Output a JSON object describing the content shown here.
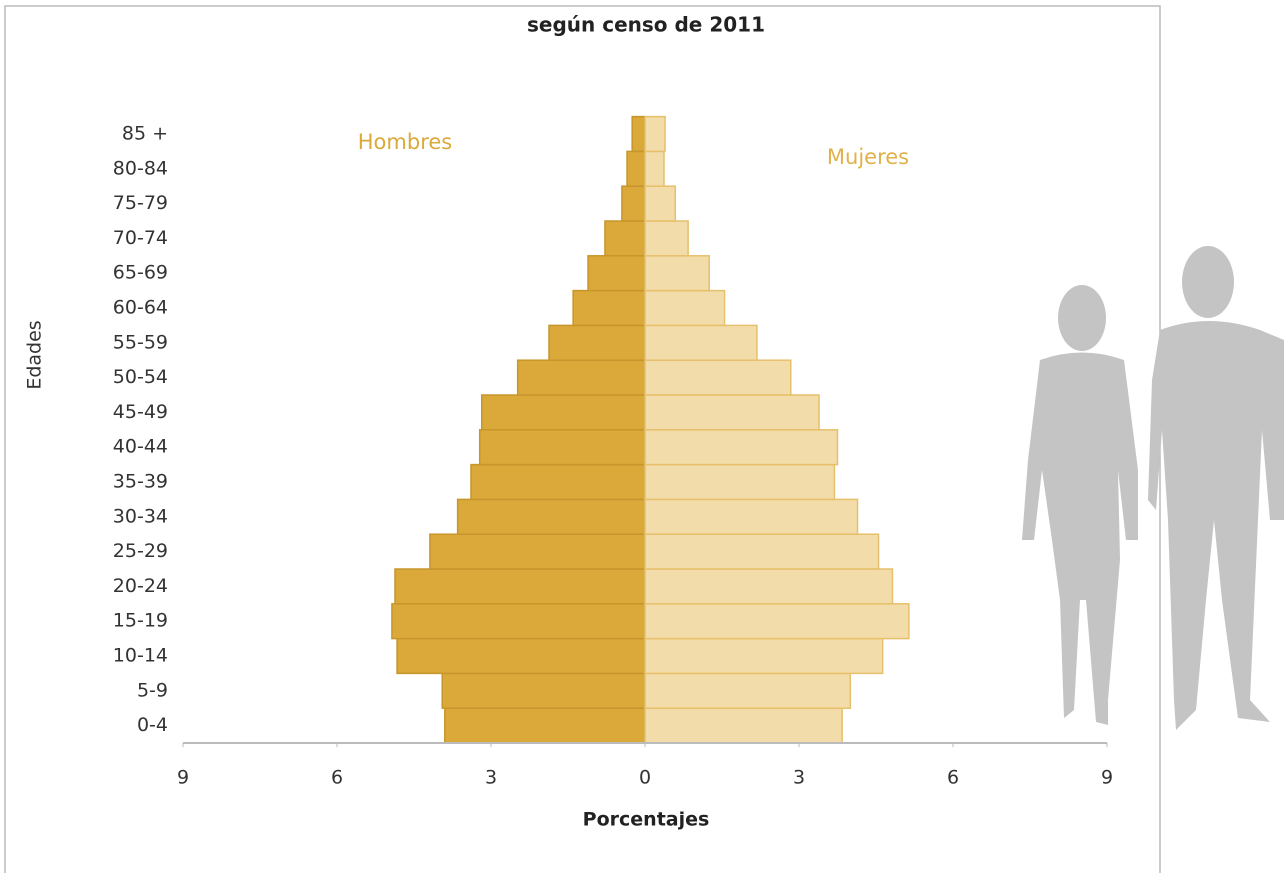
{
  "chart_data": {
    "type": "pyramid",
    "title": "según censo de 2011",
    "xlabel": "Porcentajes",
    "ylabel": "Edades",
    "categories": [
      "0-4",
      "5-9",
      "10-14",
      "15-19",
      "20-24",
      "25-29",
      "30-34",
      "35-39",
      "40-44",
      "45-49",
      "50-54",
      "55-59",
      "60-64",
      "65-69",
      "70-74",
      "75-79",
      "80-84",
      "85 +"
    ],
    "series": [
      {
        "name": "Hombres",
        "color": "#dba93a",
        "values": [
          -3.9,
          -3.95,
          -4.83,
          -4.93,
          -4.87,
          -4.19,
          -3.65,
          -3.39,
          -3.22,
          -3.18,
          -2.48,
          -1.87,
          -1.4,
          -1.11,
          -0.78,
          -0.45,
          -0.35,
          -0.25
        ]
      },
      {
        "name": "Mujeres",
        "color": "#f2dcaa",
        "values": [
          3.84,
          4.0,
          4.63,
          5.14,
          4.82,
          4.55,
          4.14,
          3.69,
          3.75,
          3.39,
          2.84,
          2.18,
          1.55,
          1.25,
          0.84,
          0.59,
          0.37,
          0.39
        ]
      }
    ],
    "xlim": [
      -9,
      9
    ],
    "xticks": [
      {
        "value": -9,
        "label": "9"
      },
      {
        "value": -6,
        "label": "6"
      },
      {
        "value": -3,
        "label": "3"
      },
      0,
      3,
      6,
      9
    ]
  }
}
